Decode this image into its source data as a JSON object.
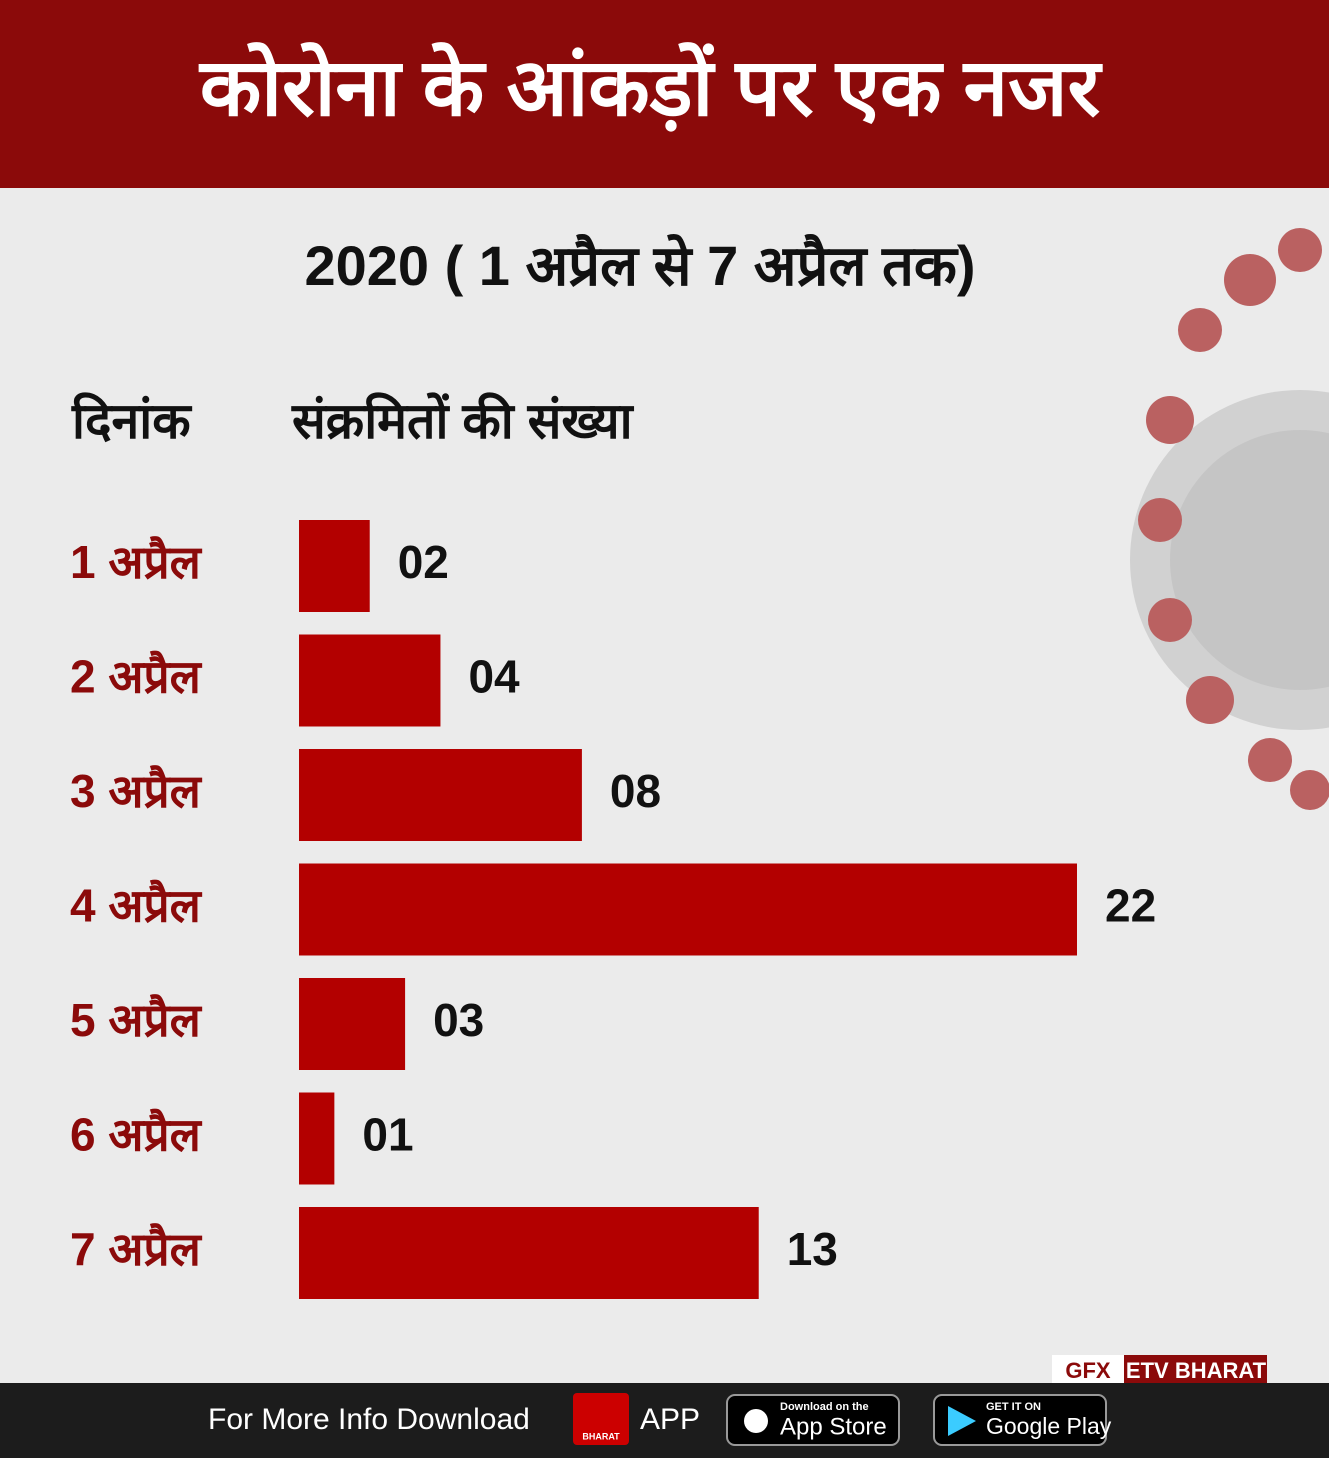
{
  "chart_data": {
    "type": "bar",
    "orientation": "horizontal",
    "title": "कोरोना के आंकड़ों पर एक नजर",
    "subtitle": "2020 ( 1 अप्रैल से 7 अप्रैल तक)",
    "ylabel": "दिनांक",
    "xlabel": "संक्रमितों की संख्या",
    "categories": [
      "1 अप्रैल",
      "2 अप्रैल",
      "3 अप्रैल",
      "4 अप्रैल",
      "5 अप्रैल",
      "6 अप्रैल",
      "7 अप्रैल"
    ],
    "values": [
      2,
      4,
      8,
      22,
      3,
      1,
      13
    ],
    "value_labels": [
      "02",
      "04",
      "08",
      "22",
      "03",
      "01",
      "13"
    ],
    "color": "#b30000"
  },
  "footer": {
    "credit_left": "GFX",
    "credit_right": "ETV BHARAT",
    "text": "For More Info Download",
    "app": "APP",
    "logo": "BHARAT",
    "appstore_small": "Download on the",
    "appstore": "App Store",
    "googleplay_small": "GET IT ON",
    "googleplay": "Google Play"
  }
}
